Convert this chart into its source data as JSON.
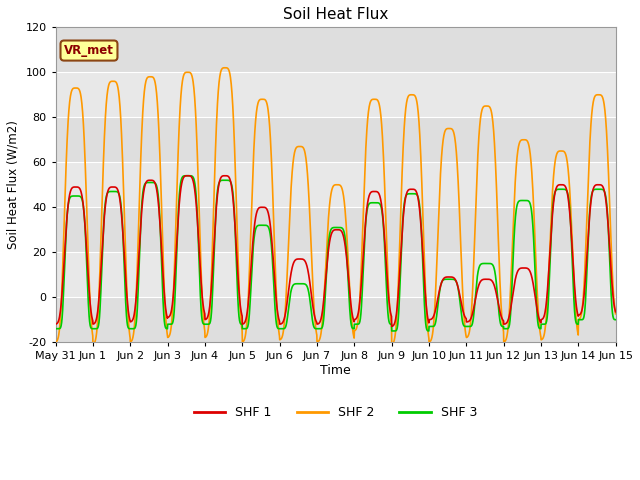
{
  "title": "Soil Heat Flux",
  "xlabel": "Time",
  "ylabel": "Soil Heat Flux (W/m2)",
  "ylim": [
    -20,
    120
  ],
  "yticks": [
    -20,
    0,
    20,
    40,
    60,
    80,
    100,
    120
  ],
  "bg_color": "#e8e8e8",
  "plot_bg_color": "#e8e8e8",
  "line_colors": {
    "SHF 1": "#dd0000",
    "SHF 2": "#ff9900",
    "SHF 3": "#00cc00"
  },
  "line_widths": {
    "SHF 1": 1.2,
    "SHF 2": 1.2,
    "SHF 3": 1.2
  },
  "xtick_labels": [
    "May 31",
    "Jun 1",
    "Jun 2",
    "Jun 3",
    "Jun 4",
    "Jun 5",
    "Jun 6",
    "Jun 7",
    "Jun 8",
    "Jun 9",
    "Jun 10",
    "Jun 11",
    "Jun 12",
    "Jun 13",
    "Jun 14",
    "Jun 15"
  ],
  "n_days": 15,
  "annotation": "VR_met",
  "annotation_color": "#8B0000",
  "annotation_bg": "#ffff99",
  "annotation_border": "#8B4513",
  "peaks_shf2": [
    93,
    96,
    98,
    100,
    102,
    88,
    67,
    50,
    88,
    90,
    75,
    85,
    70,
    65,
    90
  ],
  "peaks_shf1": [
    49,
    49,
    52,
    54,
    54,
    40,
    17,
    30,
    47,
    48,
    9,
    8,
    13,
    50,
    50
  ],
  "peaks_shf3": [
    45,
    47,
    51,
    54,
    52,
    32,
    6,
    31,
    42,
    46,
    8,
    15,
    43,
    48,
    48
  ],
  "night_min_shf2": [
    -20,
    -21,
    -20,
    -18,
    -18,
    -20,
    -19,
    -20,
    -15,
    -21,
    -20,
    -18,
    -20,
    -19,
    -10
  ],
  "night_min_shf1": [
    -12,
    -12,
    -11,
    -9,
    -10,
    -12,
    -12,
    -12,
    -10,
    -13,
    -10,
    -11,
    -12,
    -10,
    -8
  ],
  "night_min_shf3": [
    -14,
    -14,
    -14,
    -12,
    -12,
    -14,
    -14,
    -14,
    -12,
    -15,
    -13,
    -13,
    -14,
    -12,
    -10
  ],
  "figsize": [
    6.4,
    4.8
  ],
  "dpi": 100
}
